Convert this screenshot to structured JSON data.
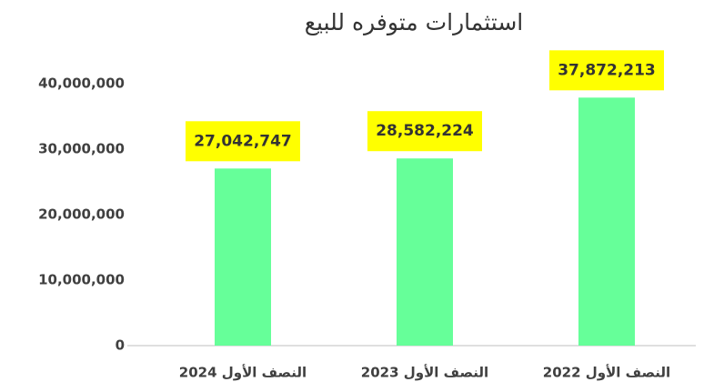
{
  "chart_data": {
    "type": "bar",
    "title": "استثمارات  متوفره للبيع",
    "categories": [
      "النصف الأول 2024",
      "النصف الأول 2023",
      "النصف الأول 2022"
    ],
    "values": [
      27042747,
      28582224,
      37872213
    ],
    "value_labels": [
      "27,042,747",
      "28,582,224",
      "37,872,213"
    ],
    "color": "#66ff99",
    "label_background": "#ffff00",
    "ylim": [
      0,
      40000000
    ],
    "yticks": [
      0,
      {
        "value": 10000000,
        "label": "10,000,000"
      },
      {
        "value": 20000000,
        "label": "20,000,000"
      },
      {
        "value": 30000000,
        "label": "30,000,000"
      },
      {
        "value": 40000000,
        "label": "40,000,000"
      }
    ],
    "grid": false
  }
}
